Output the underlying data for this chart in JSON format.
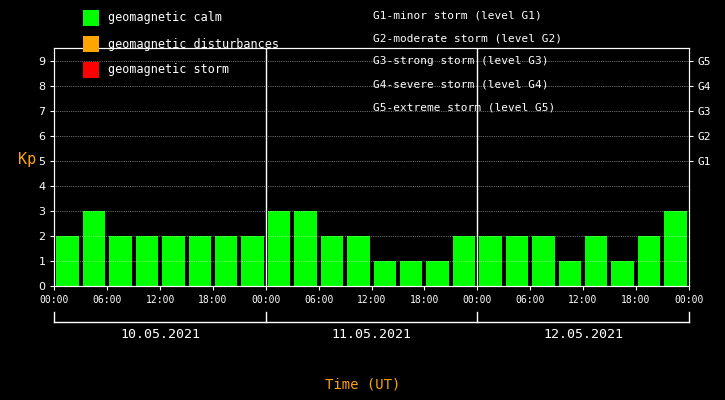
{
  "background_color": "#000000",
  "plot_bg_color": "#000000",
  "bar_color_calm": "#00ff00",
  "bar_color_disturbance": "#ffa500",
  "bar_color_storm": "#ff0000",
  "text_color": "#ffffff",
  "axis_label_color_kp": "#ffa500",
  "xlabel_color": "#ffa500",
  "days": [
    "10.05.2021",
    "11.05.2021",
    "12.05.2021"
  ],
  "kp_values_day1": [
    2,
    3,
    2,
    2,
    2,
    2,
    2,
    2
  ],
  "kp_values_day2": [
    3,
    3,
    2,
    2,
    1,
    1,
    1,
    2
  ],
  "kp_values_day3": [
    2,
    2,
    2,
    1,
    2,
    1,
    2,
    3
  ],
  "bar_width": 0.85,
  "ylim": [
    0,
    9.5
  ],
  "yticks": [
    0,
    1,
    2,
    3,
    4,
    5,
    6,
    7,
    8,
    9
  ],
  "g_tick_vals": [
    5,
    6,
    7,
    8,
    9
  ],
  "g_tick_labels": [
    "G1",
    "G2",
    "G3",
    "G4",
    "G5"
  ],
  "legend_calm": "geomagnetic calm",
  "legend_disturbances": "geomagnetic disturbances",
  "legend_storm": "geomagnetic storm",
  "right_legend_lines": [
    "G1-minor storm (level G1)",
    "G2-moderate storm (level G2)",
    "G3-strong storm (level G3)",
    "G4-severe storm (level G4)",
    "G5-extreme storm (level G5)"
  ],
  "xlabel": "Time (UT)",
  "ylabel": "Kp",
  "hour_labels": [
    "00:00",
    "06:00",
    "12:00",
    "18:00"
  ],
  "separator_color": "#ffffff"
}
